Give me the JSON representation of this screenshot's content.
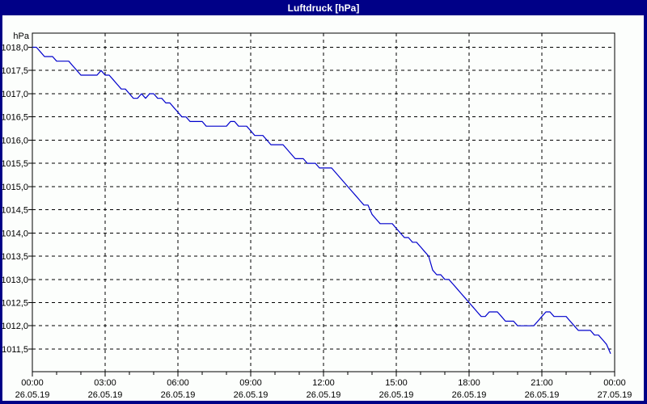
{
  "window": {
    "title": "Luftdruck [hPa]"
  },
  "colors": {
    "titlebar_bg": "#000087",
    "title_text": "#ffffff",
    "window_border": "#000087",
    "panel_bg": "#fcfefc",
    "plot_border": "#000000",
    "grid": "#000000",
    "text": "#000000",
    "line": "#0000cc"
  },
  "chart_data": {
    "type": "line",
    "title": "Luftdruck [hPa]",
    "xlabel": "",
    "ylabel": "hPa",
    "ylim": [
      1011.0,
      1018.3
    ],
    "x_range_hours": 24,
    "grid": true,
    "legend": false,
    "y_ticks": [
      {
        "value": 1018.0,
        "label": "1018,0"
      },
      {
        "value": 1017.5,
        "label": "1017,5"
      },
      {
        "value": 1017.0,
        "label": "1017,0"
      },
      {
        "value": 1016.5,
        "label": "1016,5"
      },
      {
        "value": 1016.0,
        "label": "1016,0"
      },
      {
        "value": 1015.5,
        "label": "1015,5"
      },
      {
        "value": 1015.0,
        "label": "1015,0"
      },
      {
        "value": 1014.5,
        "label": "1014,5"
      },
      {
        "value": 1014.0,
        "label": "1014,0"
      },
      {
        "value": 1013.5,
        "label": "1013,5"
      },
      {
        "value": 1013.0,
        "label": "1013,0"
      },
      {
        "value": 1012.5,
        "label": "1012,5"
      },
      {
        "value": 1012.0,
        "label": "1012,0"
      },
      {
        "value": 1011.5,
        "label": "1011,5"
      }
    ],
    "x_ticks": [
      {
        "hour": 0,
        "time": "00:00",
        "date": "26.05.19"
      },
      {
        "hour": 3,
        "time": "03:00",
        "date": "26.05.19"
      },
      {
        "hour": 6,
        "time": "06:00",
        "date": "26.05.19"
      },
      {
        "hour": 9,
        "time": "09:00",
        "date": "26.05.19"
      },
      {
        "hour": 12,
        "time": "12:00",
        "date": "26.05.19"
      },
      {
        "hour": 15,
        "time": "15:00",
        "date": "26.05.19"
      },
      {
        "hour": 18,
        "time": "18:00",
        "date": "26.05.19"
      },
      {
        "hour": 21,
        "time": "21:00",
        "date": "26.05.19"
      },
      {
        "hour": 24,
        "time": "00:00",
        "date": "27.05.19"
      }
    ],
    "series": [
      {
        "name": "Luftdruck",
        "unit": "hPa",
        "color": "#0000cc",
        "points": [
          [
            "00:00",
            1018.0
          ],
          [
            "00:10",
            1018.0
          ],
          [
            "00:20",
            1017.9
          ],
          [
            "00:30",
            1017.8
          ],
          [
            "00:40",
            1017.8
          ],
          [
            "00:50",
            1017.8
          ],
          [
            "01:00",
            1017.7
          ],
          [
            "01:10",
            1017.7
          ],
          [
            "01:20",
            1017.7
          ],
          [
            "01:30",
            1017.7
          ],
          [
            "01:40",
            1017.6
          ],
          [
            "01:50",
            1017.5
          ],
          [
            "02:00",
            1017.4
          ],
          [
            "02:10",
            1017.4
          ],
          [
            "02:20",
            1017.4
          ],
          [
            "02:30",
            1017.4
          ],
          [
            "02:40",
            1017.4
          ],
          [
            "02:50",
            1017.5
          ],
          [
            "03:00",
            1017.4
          ],
          [
            "03:10",
            1017.4
          ],
          [
            "03:20",
            1017.3
          ],
          [
            "03:30",
            1017.2
          ],
          [
            "03:40",
            1017.1
          ],
          [
            "03:50",
            1017.1
          ],
          [
            "04:00",
            1017.0
          ],
          [
            "04:10",
            1016.9
          ],
          [
            "04:20",
            1016.9
          ],
          [
            "04:30",
            1017.0
          ],
          [
            "04:40",
            1016.9
          ],
          [
            "04:50",
            1017.0
          ],
          [
            "05:00",
            1017.0
          ],
          [
            "05:10",
            1016.9
          ],
          [
            "05:20",
            1016.9
          ],
          [
            "05:30",
            1016.8
          ],
          [
            "05:40",
            1016.8
          ],
          [
            "05:50",
            1016.7
          ],
          [
            "06:00",
            1016.6
          ],
          [
            "06:10",
            1016.5
          ],
          [
            "06:20",
            1016.5
          ],
          [
            "06:30",
            1016.4
          ],
          [
            "06:40",
            1016.4
          ],
          [
            "06:50",
            1016.4
          ],
          [
            "07:00",
            1016.4
          ],
          [
            "07:10",
            1016.3
          ],
          [
            "07:20",
            1016.3
          ],
          [
            "07:30",
            1016.3
          ],
          [
            "07:40",
            1016.3
          ],
          [
            "07:50",
            1016.3
          ],
          [
            "08:00",
            1016.3
          ],
          [
            "08:10",
            1016.4
          ],
          [
            "08:20",
            1016.4
          ],
          [
            "08:30",
            1016.3
          ],
          [
            "08:40",
            1016.3
          ],
          [
            "08:50",
            1016.3
          ],
          [
            "09:00",
            1016.2
          ],
          [
            "09:10",
            1016.1
          ],
          [
            "09:20",
            1016.1
          ],
          [
            "09:30",
            1016.1
          ],
          [
            "09:40",
            1016.0
          ],
          [
            "09:50",
            1015.9
          ],
          [
            "10:00",
            1015.9
          ],
          [
            "10:10",
            1015.9
          ],
          [
            "10:20",
            1015.9
          ],
          [
            "10:30",
            1015.8
          ],
          [
            "10:40",
            1015.7
          ],
          [
            "10:50",
            1015.6
          ],
          [
            "11:00",
            1015.6
          ],
          [
            "11:10",
            1015.6
          ],
          [
            "11:20",
            1015.5
          ],
          [
            "11:30",
            1015.5
          ],
          [
            "11:40",
            1015.5
          ],
          [
            "11:50",
            1015.4
          ],
          [
            "12:00",
            1015.4
          ],
          [
            "12:10",
            1015.4
          ],
          [
            "12:20",
            1015.4
          ],
          [
            "12:30",
            1015.3
          ],
          [
            "12:40",
            1015.2
          ],
          [
            "12:50",
            1015.1
          ],
          [
            "13:00",
            1015.0
          ],
          [
            "13:10",
            1014.9
          ],
          [
            "13:20",
            1014.8
          ],
          [
            "13:30",
            1014.7
          ],
          [
            "13:40",
            1014.6
          ],
          [
            "13:50",
            1014.6
          ],
          [
            "14:00",
            1014.4
          ],
          [
            "14:10",
            1014.3
          ],
          [
            "14:20",
            1014.2
          ],
          [
            "14:30",
            1014.2
          ],
          [
            "14:40",
            1014.2
          ],
          [
            "14:50",
            1014.2
          ],
          [
            "15:00",
            1014.1
          ],
          [
            "15:10",
            1014.0
          ],
          [
            "15:20",
            1013.9
          ],
          [
            "15:30",
            1013.9
          ],
          [
            "15:40",
            1013.8
          ],
          [
            "15:50",
            1013.8
          ],
          [
            "16:00",
            1013.7
          ],
          [
            "16:10",
            1013.6
          ],
          [
            "16:20",
            1013.5
          ],
          [
            "16:30",
            1013.2
          ],
          [
            "16:40",
            1013.1
          ],
          [
            "16:50",
            1013.1
          ],
          [
            "17:00",
            1013.0
          ],
          [
            "17:10",
            1013.0
          ],
          [
            "17:20",
            1012.9
          ],
          [
            "17:30",
            1012.8
          ],
          [
            "17:40",
            1012.7
          ],
          [
            "17:50",
            1012.6
          ],
          [
            "18:00",
            1012.5
          ],
          [
            "18:10",
            1012.4
          ],
          [
            "18:20",
            1012.3
          ],
          [
            "18:30",
            1012.2
          ],
          [
            "18:40",
            1012.2
          ],
          [
            "18:50",
            1012.3
          ],
          [
            "19:00",
            1012.3
          ],
          [
            "19:10",
            1012.3
          ],
          [
            "19:20",
            1012.2
          ],
          [
            "19:30",
            1012.1
          ],
          [
            "19:40",
            1012.1
          ],
          [
            "19:50",
            1012.1
          ],
          [
            "20:00",
            1012.0
          ],
          [
            "20:10",
            1012.0
          ],
          [
            "20:20",
            1012.0
          ],
          [
            "20:30",
            1012.0
          ],
          [
            "20:40",
            1012.0
          ],
          [
            "20:50",
            1012.1
          ],
          [
            "21:00",
            1012.2
          ],
          [
            "21:10",
            1012.3
          ],
          [
            "21:20",
            1012.3
          ],
          [
            "21:30",
            1012.2
          ],
          [
            "21:40",
            1012.2
          ],
          [
            "21:50",
            1012.2
          ],
          [
            "22:00",
            1012.2
          ],
          [
            "22:10",
            1012.1
          ],
          [
            "22:20",
            1012.0
          ],
          [
            "22:30",
            1011.9
          ],
          [
            "22:40",
            1011.9
          ],
          [
            "22:50",
            1011.9
          ],
          [
            "23:00",
            1011.9
          ],
          [
            "23:10",
            1011.8
          ],
          [
            "23:20",
            1011.8
          ],
          [
            "23:30",
            1011.7
          ],
          [
            "23:40",
            1011.6
          ],
          [
            "23:50",
            1011.4
          ]
        ]
      }
    ]
  }
}
